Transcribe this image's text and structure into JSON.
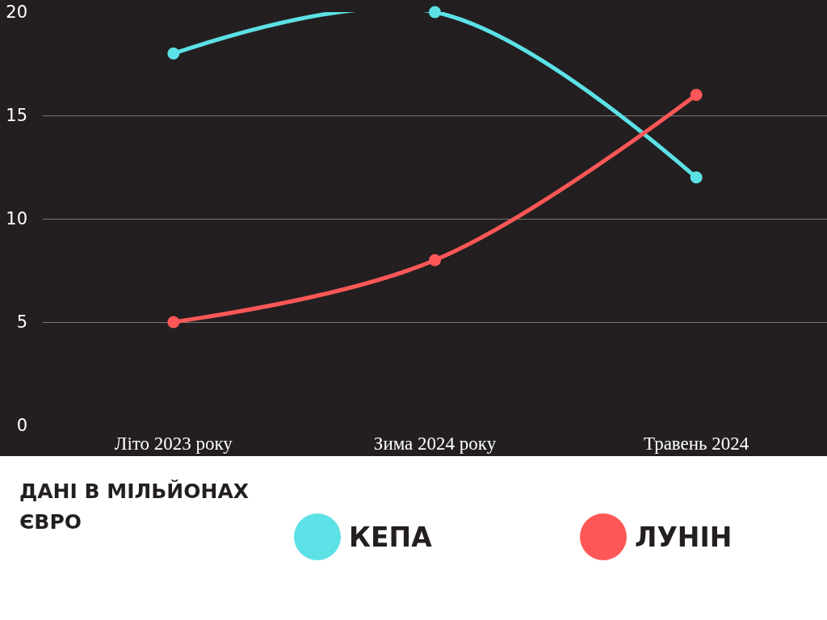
{
  "chart_data": {
    "type": "line",
    "categories": [
      "Літо 2023 року",
      "Зима 2024 року",
      "Травень 2024"
    ],
    "series": [
      {
        "name": "КЕПА",
        "color": "#5ce1e6",
        "values": [
          18,
          20,
          12
        ]
      },
      {
        "name": "ЛУНІН",
        "color": "#ff5757",
        "values": [
          5,
          8,
          16
        ]
      }
    ],
    "ylim": [
      0,
      20
    ],
    "yticks": [
      0,
      5,
      10,
      15,
      20
    ],
    "grid": "y",
    "legend": "bottom",
    "marker": "circle",
    "line_style": "solid",
    "annotations": [
      "ДАНІ В МІЛЬЙОНАХ ЄВРО"
    ]
  }
}
